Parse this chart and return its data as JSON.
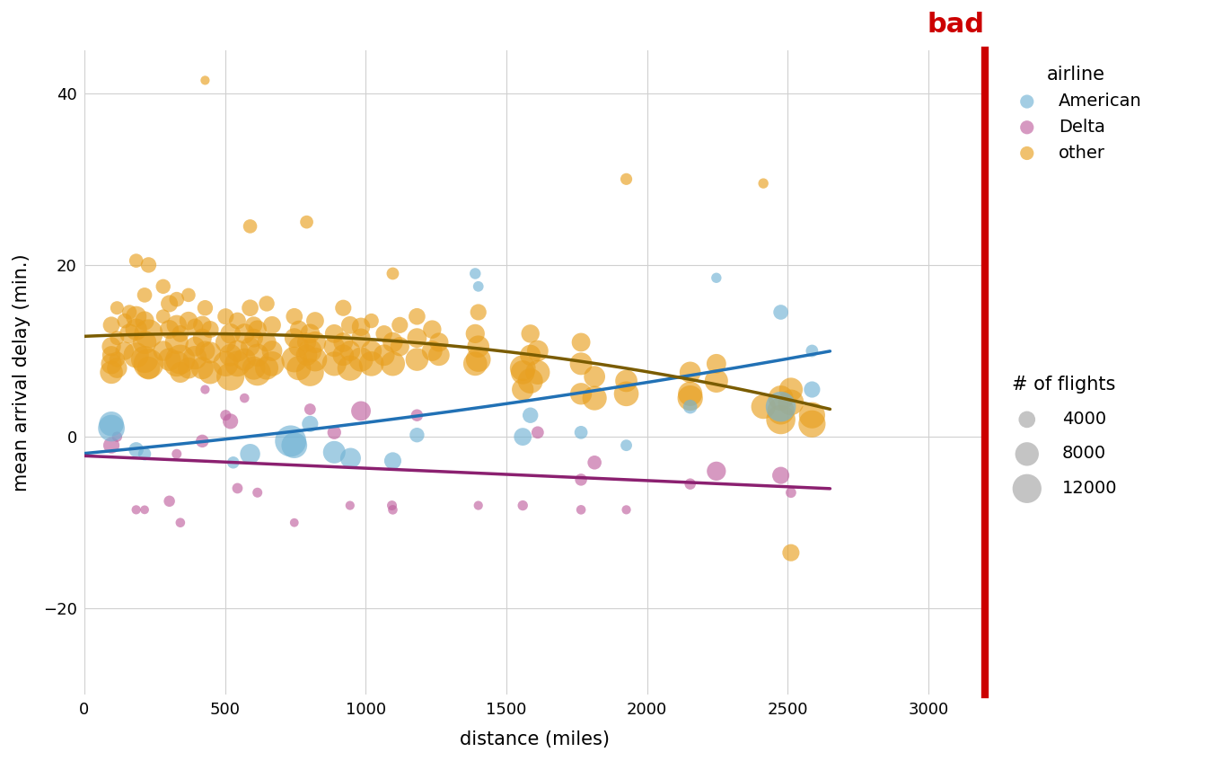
{
  "title": "bad",
  "title_color": "#cc0000",
  "xlabel": "distance (miles)",
  "ylabel": "mean arrival delay (min.)",
  "xlim": [
    0,
    3200
  ],
  "ylim": [
    -30,
    45
  ],
  "xticks": [
    0,
    500,
    1000,
    1500,
    2000,
    2500,
    3000
  ],
  "yticks": [
    -20,
    0,
    20,
    40
  ],
  "background_color": "#ffffff",
  "grid_color": "#d0d0d0",
  "colors": {
    "American": "#72b3d4",
    "Delta": "#c063a0",
    "other": "#e8a020"
  },
  "trend_colors": {
    "American": "#2171b5",
    "Delta": "#8b2070",
    "other": "#7a5c00"
  },
  "alpha": 0.65,
  "size_scale": 0.045,
  "legend_sizes": [
    4000,
    8000,
    12000
  ],
  "american_points": [
    [
      96,
      1.0,
      10167
    ],
    [
      96,
      1.5,
      8700
    ],
    [
      184,
      -1.5,
      3200
    ],
    [
      214,
      -2.0,
      2400
    ],
    [
      529,
      -3.0,
      2100
    ],
    [
      589,
      -2.0,
      5800
    ],
    [
      733,
      -0.5,
      14000
    ],
    [
      746,
      -1.0,
      9500
    ],
    [
      802,
      1.5,
      3800
    ],
    [
      888,
      -1.8,
      7200
    ],
    [
      946,
      -2.5,
      6100
    ],
    [
      1096,
      -2.8,
      4200
    ],
    [
      1182,
      0.2,
      3100
    ],
    [
      1389,
      19.0,
      1800
    ],
    [
      1400,
      17.5,
      1600
    ],
    [
      1558,
      0.0,
      4500
    ],
    [
      1585,
      2.5,
      3500
    ],
    [
      1765,
      0.5,
      2500
    ],
    [
      1926,
      -1.0,
      1900
    ],
    [
      2153,
      3.5,
      2800
    ],
    [
      2246,
      18.5,
      1500
    ],
    [
      2475,
      14.5,
      3200
    ],
    [
      2475,
      3.5,
      13000
    ],
    [
      2586,
      10.0,
      2200
    ],
    [
      2586,
      5.5,
      3800
    ]
  ],
  "delta_points": [
    [
      96,
      -1.0,
      3800
    ],
    [
      116,
      0.0,
      1500
    ],
    [
      184,
      -8.5,
      1200
    ],
    [
      214,
      -8.5,
      1100
    ],
    [
      302,
      -7.5,
      1800
    ],
    [
      328,
      -2.0,
      1400
    ],
    [
      341,
      -10.0,
      1300
    ],
    [
      419,
      -0.5,
      2400
    ],
    [
      429,
      5.5,
      1200
    ],
    [
      502,
      2.5,
      1700
    ],
    [
      519,
      1.8,
      3400
    ],
    [
      544,
      -6.0,
      1600
    ],
    [
      569,
      4.5,
      1300
    ],
    [
      615,
      -6.5,
      1400
    ],
    [
      746,
      -10.0,
      1100
    ],
    [
      802,
      3.2,
      1900
    ],
    [
      888,
      0.5,
      2700
    ],
    [
      944,
      -8.0,
      1200
    ],
    [
      983,
      3.0,
      5500
    ],
    [
      1093,
      -8.0,
      1400
    ],
    [
      1096,
      -8.5,
      1300
    ],
    [
      1182,
      2.5,
      2100
    ],
    [
      1400,
      -8.0,
      1200
    ],
    [
      1558,
      -8.0,
      1500
    ],
    [
      1611,
      0.5,
      2200
    ],
    [
      1765,
      -5.0,
      2100
    ],
    [
      1765,
      -8.5,
      1300
    ],
    [
      1813,
      -3.0,
      2800
    ],
    [
      1926,
      -8.5,
      1200
    ],
    [
      2153,
      -5.5,
      1800
    ],
    [
      2246,
      -4.0,
      5200
    ],
    [
      2475,
      -4.5,
      4200
    ],
    [
      2511,
      -6.5,
      1600
    ]
  ],
  "other_points": [
    [
      96,
      10.5,
      5200
    ],
    [
      96,
      9.5,
      4800
    ],
    [
      96,
      8.5,
      6200
    ],
    [
      96,
      7.5,
      7500
    ],
    [
      96,
      13.0,
      4100
    ],
    [
      116,
      9.0,
      3500
    ],
    [
      116,
      11.5,
      2900
    ],
    [
      116,
      8.0,
      5800
    ],
    [
      116,
      15.0,
      2600
    ],
    [
      143,
      13.5,
      3200
    ],
    [
      143,
      10.0,
      4800
    ],
    [
      160,
      14.5,
      3100
    ],
    [
      160,
      12.0,
      5500
    ],
    [
      184,
      12.5,
      6800
    ],
    [
      184,
      9.5,
      9200
    ],
    [
      184,
      20.5,
      2800
    ],
    [
      184,
      14.0,
      6200
    ],
    [
      214,
      9.0,
      10500
    ],
    [
      214,
      11.0,
      8000
    ],
    [
      214,
      13.5,
      5200
    ],
    [
      214,
      16.5,
      3200
    ],
    [
      228,
      8.5,
      13000
    ],
    [
      228,
      12.0,
      11800
    ],
    [
      228,
      20.0,
      3500
    ],
    [
      228,
      8.0,
      7500
    ],
    [
      280,
      10.0,
      5800
    ],
    [
      280,
      17.5,
      3100
    ],
    [
      280,
      14.0,
      2900
    ],
    [
      302,
      15.5,
      4200
    ],
    [
      302,
      9.0,
      7500
    ],
    [
      302,
      12.5,
      5100
    ],
    [
      328,
      13.0,
      5800
    ],
    [
      328,
      8.5,
      9500
    ],
    [
      328,
      11.0,
      7800
    ],
    [
      328,
      16.0,
      3200
    ],
    [
      341,
      7.5,
      6200
    ],
    [
      341,
      12.0,
      4100
    ],
    [
      341,
      9.0,
      12500
    ],
    [
      370,
      13.5,
      4800
    ],
    [
      370,
      8.0,
      6500
    ],
    [
      370,
      16.5,
      2800
    ],
    [
      393,
      10.5,
      5500
    ],
    [
      393,
      12.8,
      3900
    ],
    [
      393,
      9.2,
      8000
    ],
    [
      419,
      8.0,
      7200
    ],
    [
      419,
      13.0,
      4800
    ],
    [
      419,
      11.5,
      5100
    ],
    [
      429,
      15.0,
      3500
    ],
    [
      429,
      10.0,
      5600
    ],
    [
      429,
      41.5,
      1200
    ],
    [
      447,
      7.5,
      7800
    ],
    [
      447,
      12.5,
      4200
    ],
    [
      447,
      9.8,
      6700
    ],
    [
      502,
      11.0,
      6000
    ],
    [
      502,
      8.5,
      9200
    ],
    [
      502,
      14.0,
      3800
    ],
    [
      519,
      9.5,
      7100
    ],
    [
      519,
      12.0,
      5900
    ],
    [
      519,
      7.0,
      11200
    ],
    [
      544,
      13.5,
      4100
    ],
    [
      544,
      10.0,
      6800
    ],
    [
      544,
      8.5,
      9500
    ],
    [
      569,
      12.0,
      5800
    ],
    [
      569,
      9.0,
      7200
    ],
    [
      589,
      24.5,
      2800
    ],
    [
      589,
      10.5,
      5200
    ],
    [
      589,
      15.0,
      4000
    ],
    [
      602,
      8.0,
      7800
    ],
    [
      602,
      11.5,
      5000
    ],
    [
      602,
      13.0,
      4200
    ],
    [
      615,
      9.5,
      7500
    ],
    [
      615,
      12.5,
      4800
    ],
    [
      615,
      7.5,
      10200
    ],
    [
      648,
      11.0,
      5200
    ],
    [
      648,
      8.0,
      7800
    ],
    [
      648,
      15.5,
      3500
    ],
    [
      667,
      10.0,
      6000
    ],
    [
      667,
      13.0,
      4500
    ],
    [
      667,
      8.5,
      8800
    ],
    [
      746,
      11.5,
      5500
    ],
    [
      746,
      9.0,
      9500
    ],
    [
      746,
      14.0,
      4000
    ],
    [
      762,
      10.5,
      5800
    ],
    [
      762,
      8.0,
      8500
    ],
    [
      762,
      12.5,
      4500
    ],
    [
      790,
      9.5,
      6500
    ],
    [
      790,
      11.0,
      5200
    ],
    [
      790,
      25.0,
      2500
    ],
    [
      802,
      7.5,
      11000
    ],
    [
      802,
      12.0,
      5500
    ],
    [
      802,
      10.0,
      7800
    ],
    [
      820,
      13.5,
      4500
    ],
    [
      820,
      9.0,
      8200
    ],
    [
      820,
      11.0,
      6800
    ],
    [
      888,
      8.5,
      8500
    ],
    [
      888,
      12.0,
      5000
    ],
    [
      888,
      10.5,
      6200
    ],
    [
      920,
      9.5,
      6500
    ],
    [
      920,
      15.0,
      3800
    ],
    [
      920,
      11.0,
      5500
    ],
    [
      944,
      10.0,
      6000
    ],
    [
      944,
      13.0,
      4500
    ],
    [
      944,
      8.0,
      9200
    ],
    [
      983,
      11.5,
      5200
    ],
    [
      983,
      9.0,
      8500
    ],
    [
      983,
      12.8,
      4800
    ],
    [
      1020,
      10.0,
      6200
    ],
    [
      1020,
      13.5,
      3100
    ],
    [
      1020,
      8.5,
      8800
    ],
    [
      1065,
      9.5,
      6500
    ],
    [
      1065,
      12.0,
      4000
    ],
    [
      1096,
      11.0,
      5800
    ],
    [
      1096,
      19.0,
      2200
    ],
    [
      1096,
      8.5,
      8500
    ],
    [
      1121,
      10.5,
      5200
    ],
    [
      1121,
      13.0,
      3800
    ],
    [
      1182,
      9.0,
      7500
    ],
    [
      1182,
      11.5,
      5500
    ],
    [
      1182,
      14.0,
      4000
    ],
    [
      1236,
      10.0,
      6000
    ],
    [
      1236,
      12.5,
      4800
    ],
    [
      1260,
      9.5,
      6500
    ],
    [
      1260,
      11.0,
      5200
    ],
    [
      1389,
      8.5,
      8200
    ],
    [
      1389,
      12.0,
      5200
    ],
    [
      1400,
      10.5,
      7000
    ],
    [
      1400,
      9.0,
      8800
    ],
    [
      1400,
      14.5,
      3800
    ],
    [
      1558,
      8.0,
      9500
    ],
    [
      1558,
      5.5,
      6800
    ],
    [
      1558,
      7.5,
      8200
    ],
    [
      1585,
      9.5,
      6200
    ],
    [
      1585,
      12.0,
      4800
    ],
    [
      1585,
      6.5,
      9000
    ],
    [
      1611,
      10.0,
      6500
    ],
    [
      1611,
      7.5,
      8500
    ],
    [
      1765,
      8.5,
      7200
    ],
    [
      1765,
      5.0,
      6800
    ],
    [
      1765,
      11.0,
      5000
    ],
    [
      1813,
      4.5,
      8500
    ],
    [
      1813,
      7.0,
      6500
    ],
    [
      1926,
      6.5,
      7000
    ],
    [
      1926,
      5.0,
      8800
    ],
    [
      1926,
      30.0,
      2000
    ],
    [
      2153,
      7.5,
      6500
    ],
    [
      2153,
      5.0,
      8500
    ],
    [
      2153,
      4.5,
      9200
    ],
    [
      2246,
      6.5,
      7800
    ],
    [
      2246,
      8.5,
      5500
    ],
    [
      2413,
      29.5,
      1500
    ],
    [
      2413,
      3.5,
      8500
    ],
    [
      2475,
      4.5,
      9000
    ],
    [
      2475,
      3.0,
      10500
    ],
    [
      2475,
      2.0,
      12200
    ],
    [
      2511,
      5.5,
      8000
    ],
    [
      2511,
      -13.5,
      4200
    ],
    [
      2511,
      4.0,
      9500
    ],
    [
      2586,
      2.5,
      9800
    ],
    [
      2586,
      1.5,
      10500
    ]
  ]
}
